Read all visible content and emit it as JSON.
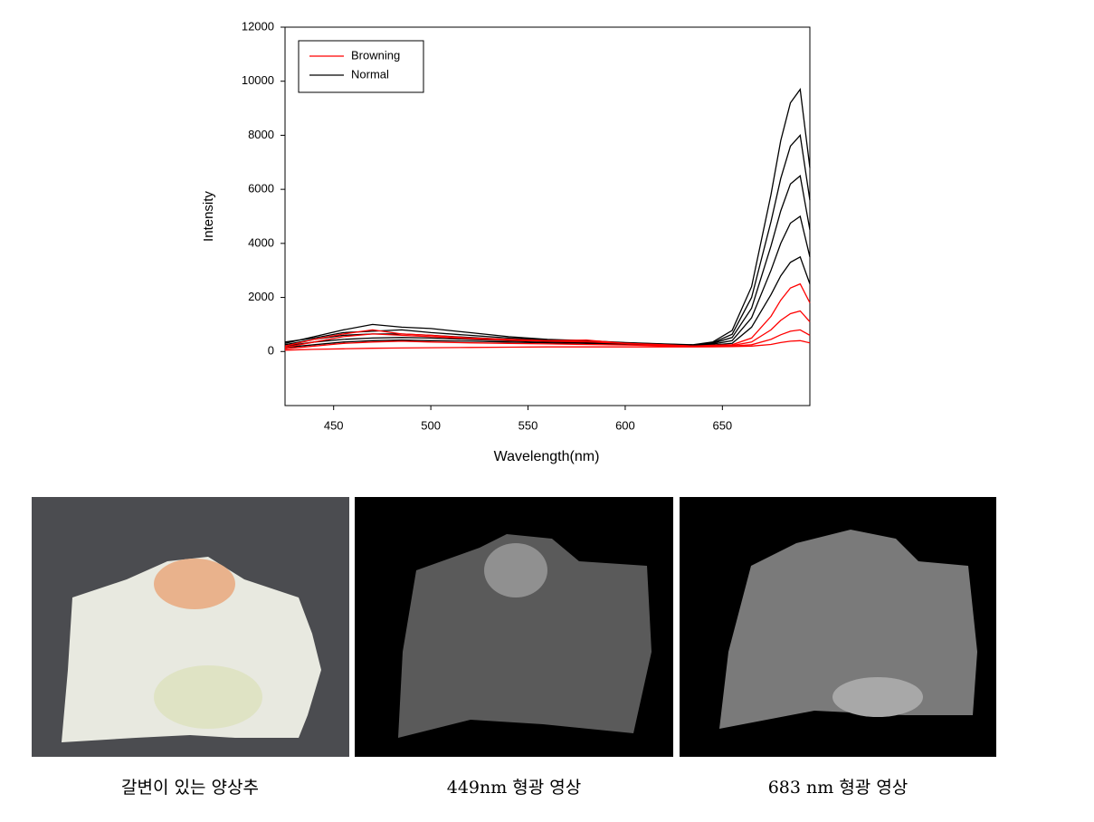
{
  "chart_data": {
    "type": "line",
    "x_label": "Wavelength(nm)",
    "y_label": "Intensity",
    "x": [
      425,
      440,
      455,
      470,
      485,
      500,
      520,
      540,
      560,
      580,
      600,
      620,
      635,
      645,
      655,
      665,
      675,
      680,
      685,
      690,
      695
    ],
    "xlim": [
      425,
      695
    ],
    "xticks": [
      450,
      500,
      550,
      600,
      650
    ],
    "ylim": [
      -2000,
      12000
    ],
    "yticks": [
      0,
      2000,
      4000,
      6000,
      8000,
      10000,
      12000
    ],
    "grid": false,
    "legend": "upper-left",
    "series": [
      {
        "name": "Browning",
        "color": "#ff0000",
        "curves": [
          [
            200,
            450,
            650,
            800,
            650,
            600,
            500,
            450,
            400,
            420,
            300,
            250,
            200,
            230,
            250,
            500,
            1300,
            1900,
            2350,
            2500,
            1800
          ],
          [
            150,
            350,
            550,
            650,
            600,
            550,
            480,
            420,
            380,
            360,
            300,
            240,
            200,
            210,
            220,
            350,
            800,
            1150,
            1400,
            1500,
            1100
          ],
          [
            100,
            200,
            300,
            350,
            380,
            350,
            320,
            300,
            280,
            260,
            240,
            210,
            190,
            195,
            200,
            250,
            450,
            620,
            750,
            800,
            600
          ],
          [
            50,
            80,
            100,
            120,
            130,
            140,
            150,
            160,
            170,
            170,
            170,
            170,
            170,
            175,
            180,
            200,
            260,
            330,
            380,
            400,
            320
          ]
        ]
      },
      {
        "name": "Normal",
        "color": "#000000",
        "curves": [
          [
            300,
            550,
            800,
            1000,
            900,
            850,
            700,
            550,
            450,
            400,
            330,
            280,
            250,
            350,
            780,
            2400,
            5800,
            7800,
            9200,
            9700,
            6800
          ],
          [
            350,
            500,
            700,
            750,
            800,
            700,
            600,
            500,
            420,
            380,
            320,
            270,
            240,
            320,
            640,
            2000,
            4800,
            6400,
            7600,
            8000,
            5600
          ],
          [
            250,
            450,
            600,
            650,
            650,
            600,
            520,
            450,
            400,
            360,
            310,
            260,
            230,
            300,
            520,
            1600,
            3900,
            5200,
            6200,
            6500,
            4500
          ],
          [
            200,
            350,
            450,
            500,
            520,
            500,
            450,
            400,
            360,
            330,
            290,
            250,
            220,
            270,
            400,
            1250,
            3000,
            4000,
            4750,
            5000,
            3500
          ],
          [
            150,
            250,
            350,
            400,
            420,
            400,
            380,
            350,
            320,
            300,
            270,
            240,
            210,
            240,
            300,
            900,
            2100,
            2800,
            3300,
            3500,
            2500
          ]
        ]
      }
    ]
  },
  "figure": {
    "captions": [
      "갈변이 있는 양상추",
      "449nm 형광 영상",
      "683 nm 형광 영상"
    ]
  }
}
